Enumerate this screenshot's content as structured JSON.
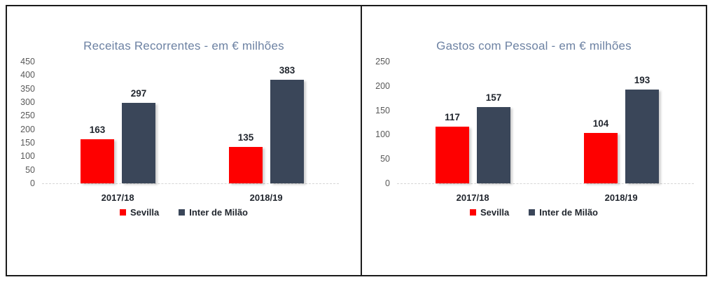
{
  "frame": {
    "background": "#ffffff",
    "border_color": "#1b1b1b"
  },
  "palette": {
    "title_color": "#6d82a3",
    "tick_label_color": "#595959",
    "data_label_color": "#21262e",
    "category_label_color": "#21262e",
    "legend_label_color": "#21262e",
    "axis_line_color": "#d6d6d6",
    "sevilla_color": "#fe0000",
    "inter_color": "#3a4659",
    "frame_border": "#1b1b1b"
  },
  "chart_data": [
    {
      "type": "bar",
      "title": "Receitas Recorrentes - em € milhões",
      "categories": [
        "2017/18",
        "2018/19"
      ],
      "series": [
        {
          "name": "Sevilla",
          "color": "#fe0000",
          "values": [
            163,
            135
          ]
        },
        {
          "name": "Inter de Milão",
          "color": "#3a4659",
          "values": [
            297,
            383
          ]
        }
      ],
      "xlabel": "",
      "ylabel": "",
      "ylim": [
        0,
        450
      ],
      "y_ticks": [
        450,
        400,
        350,
        300,
        250,
        200,
        150,
        100,
        50,
        0
      ],
      "grid": false,
      "legend_position": "bottom",
      "data_labels": true
    },
    {
      "type": "bar",
      "title": "Gastos com Pessoal - em € milhões",
      "categories": [
        "2017/18",
        "2018/19"
      ],
      "series": [
        {
          "name": "Sevilla",
          "color": "#fe0000",
          "values": [
            117,
            104
          ]
        },
        {
          "name": "Inter de Milão",
          "color": "#3a4659",
          "values": [
            157,
            193
          ]
        }
      ],
      "xlabel": "",
      "ylabel": "",
      "ylim": [
        0,
        250
      ],
      "y_ticks": [
        250,
        200,
        150,
        100,
        50,
        0
      ],
      "grid": false,
      "legend_position": "bottom",
      "data_labels": true
    }
  ]
}
